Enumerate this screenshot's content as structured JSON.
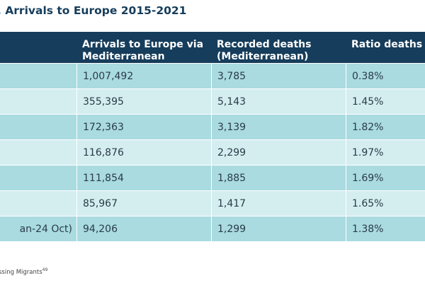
{
  "title": ". Arrivals to Europe 2015-2021",
  "table": {
    "headers": [
      "",
      "Arrivals to Europe via Mediterranean",
      "Recorded deaths (Mediterranean)",
      "Ratio deaths"
    ],
    "header_lines": [
      [
        ""
      ],
      [
        "Arrivals to Europe via",
        "Mediterranean"
      ],
      [
        "Recorded deaths",
        "(Mediterranean)"
      ],
      [
        "Ratio deaths"
      ]
    ],
    "rows": [
      {
        "year": "",
        "arrivals": "1,007,492",
        "deaths": "3,785",
        "ratio": "0.38%"
      },
      {
        "year": "",
        "arrivals": "355,395",
        "deaths": "5,143",
        "ratio": "1.45%"
      },
      {
        "year": "",
        "arrivals": "172,363",
        "deaths": "3,139",
        "ratio": "1.82%"
      },
      {
        "year": "",
        "arrivals": "116,876",
        "deaths": "2,299",
        "ratio": "1.97%"
      },
      {
        "year": "",
        "arrivals": "111,854",
        "deaths": "1,885",
        "ratio": "1.69%"
      },
      {
        "year": "",
        "arrivals": "85,967",
        "deaths": "1,417",
        "ratio": "1.65%"
      },
      {
        "year": "an-24 Oct)",
        "arrivals": "94,206",
        "deaths": "1,299",
        "ratio": "1.38%"
      }
    ]
  },
  "source": {
    "text": "ssing Migrants",
    "footnote": "49"
  }
}
